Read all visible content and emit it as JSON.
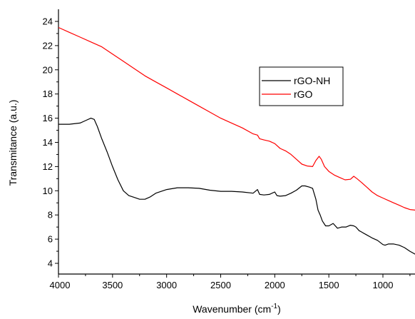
{
  "chart_data": {
    "type": "line",
    "title": "",
    "xlabel": "Wavenumber (cm",
    "xlabel_sup": "-1",
    "xlabel_end": ")",
    "ylabel": "Transmitance (a.u.)",
    "xlim": [
      4000,
      700
    ],
    "ylim": [
      3,
      25
    ],
    "x_reversed": true,
    "grid": false,
    "legend_position": "center-right",
    "x_ticks": [
      4000,
      3500,
      3000,
      2500,
      2000,
      1500,
      1000
    ],
    "y_ticks": [
      4,
      6,
      8,
      10,
      12,
      14,
      16,
      18,
      20,
      22,
      24
    ],
    "series": [
      {
        "name": "rGO-NH",
        "color": "#000000",
        "x": [
          4000,
          3900,
          3800,
          3750,
          3700,
          3670,
          3640,
          3600,
          3550,
          3500,
          3450,
          3400,
          3350,
          3300,
          3250,
          3200,
          3150,
          3100,
          3000,
          2900,
          2800,
          2700,
          2600,
          2500,
          2400,
          2300,
          2200,
          2160,
          2140,
          2100,
          2050,
          2000,
          1980,
          1950,
          1900,
          1850,
          1800,
          1750,
          1720,
          1680,
          1650,
          1620,
          1600,
          1580,
          1560,
          1530,
          1500,
          1460,
          1420,
          1380,
          1340,
          1300,
          1270,
          1250,
          1220,
          1200,
          1150,
          1100,
          1050,
          1000,
          980,
          950,
          900,
          850,
          800,
          750,
          700
        ],
        "values": [
          15.5,
          15.5,
          15.6,
          15.8,
          16.0,
          15.9,
          15.3,
          14.3,
          13.2,
          12.0,
          10.9,
          10.0,
          9.6,
          9.45,
          9.3,
          9.3,
          9.5,
          9.8,
          10.1,
          10.25,
          10.25,
          10.2,
          10.05,
          9.95,
          9.95,
          9.9,
          9.8,
          10.1,
          9.7,
          9.65,
          9.7,
          9.9,
          9.6,
          9.55,
          9.6,
          9.8,
          10.05,
          10.4,
          10.4,
          10.3,
          10.2,
          9.3,
          8.4,
          8.0,
          7.5,
          7.1,
          7.1,
          7.3,
          6.9,
          7.0,
          7.0,
          7.15,
          7.1,
          7.0,
          6.7,
          6.6,
          6.35,
          6.1,
          5.9,
          5.55,
          5.5,
          5.6,
          5.6,
          5.5,
          5.3,
          5.0,
          4.75
        ]
      },
      {
        "name": "rGO",
        "color": "#ff0000",
        "x": [
          4000,
          3900,
          3800,
          3700,
          3600,
          3500,
          3400,
          3300,
          3200,
          3100,
          3000,
          2900,
          2800,
          2700,
          2600,
          2500,
          2400,
          2300,
          2200,
          2160,
          2140,
          2100,
          2050,
          2000,
          1950,
          1900,
          1850,
          1800,
          1750,
          1700,
          1650,
          1620,
          1590,
          1570,
          1540,
          1500,
          1450,
          1400,
          1350,
          1300,
          1270,
          1240,
          1200,
          1150,
          1100,
          1050,
          1000,
          950,
          900,
          850,
          800,
          750,
          700
        ],
        "values": [
          23.5,
          23.1,
          22.7,
          22.3,
          21.9,
          21.3,
          20.7,
          20.1,
          19.5,
          19.0,
          18.5,
          18.0,
          17.5,
          17.0,
          16.5,
          16.0,
          15.6,
          15.2,
          14.7,
          14.6,
          14.3,
          14.2,
          14.1,
          13.9,
          13.5,
          13.3,
          13.0,
          12.6,
          12.2,
          12.05,
          12.0,
          12.5,
          12.85,
          12.6,
          12.0,
          11.6,
          11.3,
          11.1,
          10.9,
          10.95,
          11.2,
          11.0,
          10.7,
          10.3,
          9.9,
          9.6,
          9.4,
          9.2,
          9.0,
          8.8,
          8.6,
          8.45,
          8.4
        ]
      }
    ]
  }
}
